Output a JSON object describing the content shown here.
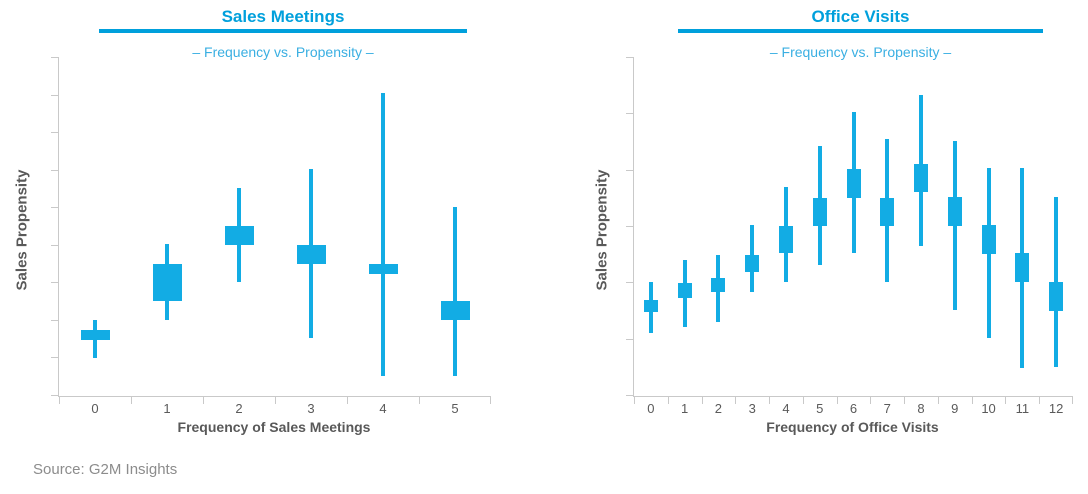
{
  "page": {
    "source": "Source: G2M Insights"
  },
  "colors": {
    "accent_title": "#00A0DC",
    "accent_rule": "#00A0DC",
    "accent_subtitle": "#3AAFE2",
    "box_fill": "#12ACE4",
    "axis_line": "#C9C9C9",
    "tick_label": "#5A5A5A",
    "axis_title": "#595959",
    "source_text": "#8C8C8C"
  },
  "chart_data": [
    {
      "type": "candlestick",
      "title": "Sales Meetings",
      "subtitle": "– Frequency vs. Propensity –",
      "xlabel": "Frequency of Sales Meetings",
      "ylabel": "Sales Propensity",
      "categories": [
        "0",
        "1",
        "2",
        "3",
        "4",
        "5"
      ],
      "grid": false,
      "legend": null,
      "y_axis": {
        "tick_count": 10,
        "tick_labels_visible": false,
        "range": [
          0,
          100
        ],
        "units": "relative sales propensity (axis unlabeled); 0 = axis bottom, 100 = axis top"
      },
      "series": [
        {
          "name": "Sales propensity range",
          "points": [
            {
              "x": "0",
              "whisker_low": 11.2,
              "box_low": 16.5,
              "box_high": 19.5,
              "whisker_high": 22.4
            },
            {
              "x": "1",
              "whisker_low": 22.4,
              "box_low": 28.0,
              "box_high": 38.9,
              "whisker_high": 44.8
            },
            {
              "x": "2",
              "whisker_low": 33.6,
              "box_low": 44.5,
              "box_high": 50.1,
              "whisker_high": 61.4
            },
            {
              "x": "3",
              "whisker_low": 17.1,
              "box_low": 38.9,
              "box_high": 44.5,
              "whisker_high": 67.0
            },
            {
              "x": "4",
              "whisker_low": 5.9,
              "box_low": 36.0,
              "box_high": 38.9,
              "whisker_high": 89.4
            },
            {
              "x": "5",
              "whisker_low": 5.9,
              "box_low": 22.4,
              "box_high": 28.0,
              "whisker_high": 55.8
            }
          ]
        }
      ]
    },
    {
      "type": "candlestick",
      "title": "Office Visits",
      "subtitle": "– Frequency vs. Propensity –",
      "xlabel": "Frequency of Office Visits",
      "ylabel": "Sales Propensity",
      "categories": [
        "0",
        "1",
        "2",
        "3",
        "4",
        "5",
        "6",
        "7",
        "8",
        "9",
        "10",
        "11",
        "12"
      ],
      "grid": false,
      "legend": null,
      "y_axis": {
        "tick_count": 7,
        "tick_labels_visible": false,
        "range": [
          0,
          100
        ],
        "units": "relative sales propensity (axis unlabeled); 0 = axis bottom, 100 = axis top"
      },
      "series": [
        {
          "name": "Sales propensity range",
          "points": [
            {
              "x": "0",
              "whisker_low": 18.6,
              "box_low": 24.8,
              "box_high": 28.3,
              "whisker_high": 33.6
            },
            {
              "x": "1",
              "whisker_low": 20.4,
              "box_low": 28.9,
              "box_high": 33.3,
              "whisker_high": 40.1
            },
            {
              "x": "2",
              "whisker_low": 21.8,
              "box_low": 30.7,
              "box_high": 34.8,
              "whisker_high": 41.6
            },
            {
              "x": "3",
              "whisker_low": 30.7,
              "box_low": 36.6,
              "box_high": 41.6,
              "whisker_high": 50.4
            },
            {
              "x": "4",
              "whisker_low": 33.6,
              "box_low": 42.2,
              "box_high": 50.1,
              "whisker_high": 61.7
            },
            {
              "x": "5",
              "whisker_low": 38.6,
              "box_low": 50.1,
              "box_high": 58.4,
              "whisker_high": 73.7
            },
            {
              "x": "6",
              "whisker_low": 42.2,
              "box_low": 58.4,
              "box_high": 67.0,
              "whisker_high": 83.8
            },
            {
              "x": "7",
              "whisker_low": 33.6,
              "box_low": 50.1,
              "box_high": 58.4,
              "whisker_high": 75.8
            },
            {
              "x": "8",
              "whisker_low": 44.2,
              "box_low": 60.2,
              "box_high": 68.4,
              "whisker_high": 88.8
            },
            {
              "x": "9",
              "whisker_low": 25.4,
              "box_low": 50.1,
              "box_high": 58.7,
              "whisker_high": 75.2
            },
            {
              "x": "10",
              "whisker_low": 17.1,
              "box_low": 41.9,
              "box_high": 50.4,
              "whisker_high": 67.3
            },
            {
              "x": "11",
              "whisker_low": 8.3,
              "box_low": 33.6,
              "box_high": 42.2,
              "whisker_high": 67.3
            },
            {
              "x": "12",
              "whisker_low": 8.6,
              "box_low": 25.1,
              "box_high": 33.6,
              "whisker_high": 58.7
            }
          ]
        }
      ]
    }
  ]
}
